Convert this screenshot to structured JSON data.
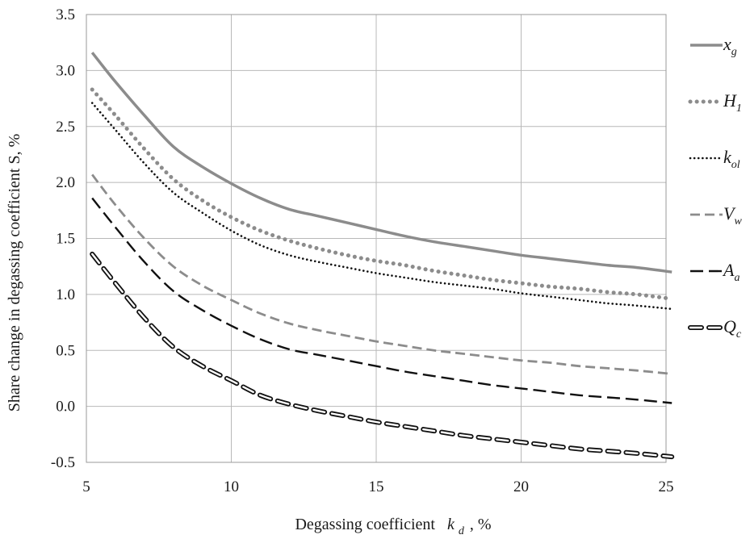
{
  "chart_data": {
    "type": "line",
    "title": "",
    "xlabel": {
      "prefix": "Degassing coefficient",
      "symbol": "k",
      "subscript": "d",
      "suffix": ", %"
    },
    "ylabel": "Share   change in degassing coefficient  S, %",
    "xlim": [
      5,
      25
    ],
    "ylim": [
      -0.5,
      3.5
    ],
    "xticks": [
      "5",
      "10",
      "15",
      "20",
      "25"
    ],
    "yticks": [
      "-0.5",
      "0.0",
      "0.5",
      "1.0",
      "1.5",
      "2.0",
      "2.5",
      "3.0",
      "3.5"
    ],
    "grid": true,
    "legend_position": "right",
    "series": [
      {
        "name": "x",
        "sub": "g",
        "style": "solid-gray",
        "x": [
          5.2,
          6,
          7,
          8,
          9,
          10,
          11,
          12,
          13,
          14,
          15,
          16,
          17,
          18,
          19,
          20,
          21,
          22,
          23,
          24,
          25.2
        ],
        "y": [
          3.16,
          2.9,
          2.6,
          2.32,
          2.14,
          1.99,
          1.86,
          1.76,
          1.7,
          1.64,
          1.58,
          1.52,
          1.47,
          1.43,
          1.39,
          1.35,
          1.32,
          1.29,
          1.26,
          1.24,
          1.2
        ]
      },
      {
        "name": "H",
        "sub": "1",
        "style": "dotted-gray",
        "x": [
          5.2,
          6,
          7,
          8,
          9,
          10,
          11,
          12,
          13,
          14,
          15,
          16,
          17,
          18,
          19,
          20,
          21,
          22,
          23,
          24,
          25.2
        ],
        "y": [
          2.83,
          2.6,
          2.3,
          2.03,
          1.84,
          1.69,
          1.57,
          1.48,
          1.41,
          1.35,
          1.3,
          1.26,
          1.21,
          1.17,
          1.13,
          1.1,
          1.07,
          1.05,
          1.02,
          1.0,
          0.96
        ]
      },
      {
        "name": "k",
        "sub": "ol",
        "style": "dotted-black",
        "x": [
          5.2,
          6,
          7,
          8,
          9,
          10,
          11,
          12,
          13,
          14,
          15,
          16,
          17,
          18,
          19,
          20,
          21,
          22,
          23,
          24,
          25.2
        ],
        "y": [
          2.71,
          2.47,
          2.17,
          1.91,
          1.73,
          1.57,
          1.44,
          1.35,
          1.29,
          1.24,
          1.19,
          1.15,
          1.11,
          1.08,
          1.05,
          1.01,
          0.98,
          0.95,
          0.92,
          0.9,
          0.87
        ]
      },
      {
        "name": "V",
        "sub": "w",
        "style": "dashed-gray",
        "x": [
          5.2,
          6,
          7,
          8,
          9,
          10,
          11,
          12,
          13,
          14,
          15,
          16,
          17,
          18,
          19,
          20,
          21,
          22,
          23,
          24,
          25.2
        ],
        "y": [
          2.07,
          1.8,
          1.5,
          1.25,
          1.08,
          0.95,
          0.83,
          0.74,
          0.68,
          0.63,
          0.58,
          0.54,
          0.5,
          0.47,
          0.44,
          0.41,
          0.39,
          0.36,
          0.34,
          0.32,
          0.29
        ]
      },
      {
        "name": "A",
        "sub": "a",
        "style": "dashed-black",
        "x": [
          5.2,
          6,
          7,
          8,
          9,
          10,
          11,
          12,
          13,
          14,
          15,
          16,
          17,
          18,
          19,
          20,
          21,
          22,
          23,
          24,
          25.2
        ],
        "y": [
          1.86,
          1.6,
          1.29,
          1.03,
          0.86,
          0.72,
          0.6,
          0.51,
          0.46,
          0.41,
          0.36,
          0.31,
          0.27,
          0.23,
          0.19,
          0.16,
          0.13,
          0.1,
          0.08,
          0.06,
          0.03
        ]
      },
      {
        "name": "Q",
        "sub": "c",
        "style": "hollow-dashed-black",
        "x": [
          5.2,
          6,
          7,
          8,
          9,
          10,
          11,
          12,
          13,
          14,
          15,
          16,
          17,
          18,
          19,
          20,
          21,
          22,
          23,
          24,
          25.2
        ],
        "y": [
          1.36,
          1.1,
          0.79,
          0.53,
          0.36,
          0.23,
          0.1,
          0.02,
          -0.04,
          -0.09,
          -0.14,
          -0.18,
          -0.22,
          -0.26,
          -0.29,
          -0.32,
          -0.35,
          -0.38,
          -0.4,
          -0.42,
          -0.45
        ]
      }
    ]
  }
}
